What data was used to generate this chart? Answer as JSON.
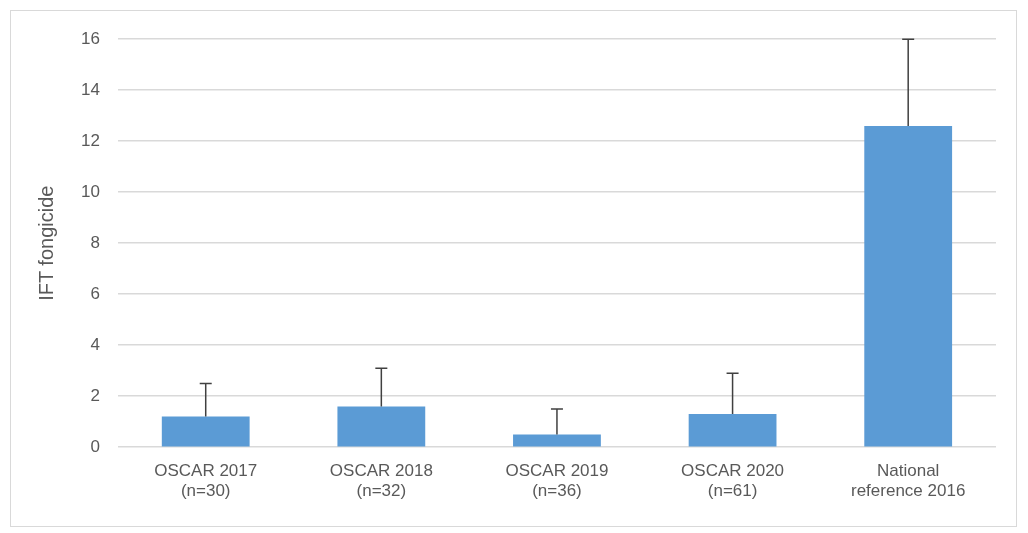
{
  "chart_data": {
    "type": "bar",
    "ylabel": "IFT fongicide",
    "categories": [
      "OSCAR 2017\n(n=30)",
      "OSCAR 2018\n(n=32)",
      "OSCAR 2019\n(n=36)",
      "OSCAR 2020\n(n=61)",
      "National\nreference 2016"
    ],
    "values": [
      1.2,
      1.6,
      0.5,
      1.3,
      12.6
    ],
    "errors": [
      [
        1.2,
        2.5
      ],
      [
        1.6,
        3.1
      ],
      [
        0.5,
        1.5
      ],
      [
        1.3,
        2.9
      ],
      [
        12.6,
        16
      ]
    ],
    "color": "#5b9bd5",
    "ylim": [
      0,
      16
    ],
    "yticks": [
      0,
      2,
      4,
      6,
      8,
      10,
      12,
      14,
      16
    ],
    "grid": "y"
  }
}
